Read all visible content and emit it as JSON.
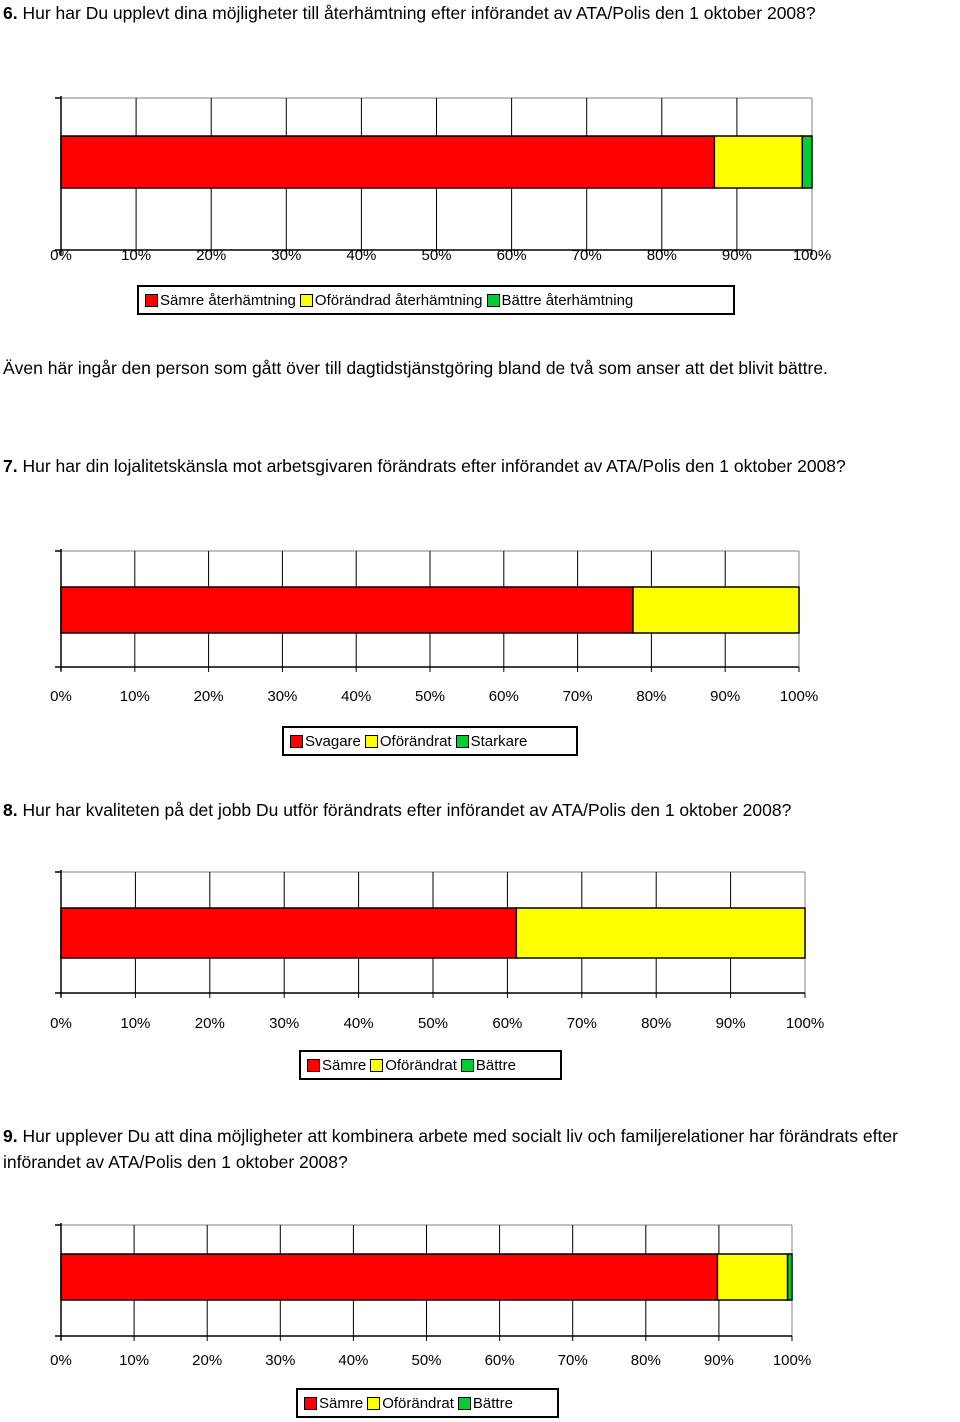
{
  "colors": {
    "red": "#ff0000",
    "yellow": "#ffff00",
    "green": "#00cc33"
  },
  "questions": [
    {
      "number": "6.",
      "text": "Hur har Du upplevt dina möjligheter till återhämtning efter införandet av ATA/Polis den 1 oktober 2008?"
    },
    {
      "number": "7.",
      "text": "Hur har din lojalitetskänsla mot arbetsgivaren förändrats efter införandet av ATA/Polis den 1 oktober 2008?"
    },
    {
      "number": "8.",
      "text": "Hur har kvaliteten på det jobb Du utför förändrats efter införandet av ATA/Polis den 1 oktober 2008?"
    },
    {
      "number": "9.",
      "text": "Hur upplever Du att dina möjligheter att kombinera arbete med socialt liv och familjerelationer har förändrats efter införandet av ATA/Polis den 1 oktober 2008?"
    }
  ],
  "note": "Även här ingår den person som gått över till dagtidstjänstgöring bland de två som anser att det blivit bättre.",
  "chart_data": [
    {
      "type": "bar",
      "orientation": "horizontal-stacked-100",
      "xlim": [
        0,
        100
      ],
      "ticks": [
        "0%",
        "10%",
        "20%",
        "30%",
        "40%",
        "50%",
        "60%",
        "70%",
        "80%",
        "90%",
        "100%"
      ],
      "grid": true,
      "legend_position": "bottom",
      "series": [
        {
          "name": "Sämre återhämtning",
          "values": [
            87
          ],
          "color": "#ff0000"
        },
        {
          "name": "Oförändrad återhämtning",
          "values": [
            11.7
          ],
          "color": "#ffff00"
        },
        {
          "name": "Bättre återhämtning",
          "values": [
            1.3
          ],
          "color": "#00cc33"
        }
      ]
    },
    {
      "type": "bar",
      "orientation": "horizontal-stacked-100",
      "xlim": [
        0,
        100
      ],
      "ticks": [
        "0%",
        "10%",
        "20%",
        "30%",
        "40%",
        "50%",
        "60%",
        "70%",
        "80%",
        "90%",
        "100%"
      ],
      "grid": true,
      "legend_position": "bottom",
      "series": [
        {
          "name": "Svagare",
          "values": [
            77.5
          ],
          "color": "#ff0000"
        },
        {
          "name": "Oförändrat",
          "values": [
            22.5
          ],
          "color": "#ffff00"
        },
        {
          "name": "Starkare",
          "values": [
            0
          ],
          "color": "#00cc33"
        }
      ]
    },
    {
      "type": "bar",
      "orientation": "horizontal-stacked-100",
      "xlim": [
        0,
        100
      ],
      "ticks": [
        "0%",
        "10%",
        "20%",
        "30%",
        "40%",
        "50%",
        "60%",
        "70%",
        "80%",
        "90%",
        "100%"
      ],
      "grid": true,
      "legend_position": "bottom",
      "series": [
        {
          "name": "Sämre",
          "values": [
            61.2
          ],
          "color": "#ff0000"
        },
        {
          "name": "Oförändrat",
          "values": [
            38.8
          ],
          "color": "#ffff00"
        },
        {
          "name": "Bättre",
          "values": [
            0
          ],
          "color": "#00cc33"
        }
      ]
    },
    {
      "type": "bar",
      "orientation": "horizontal-stacked-100",
      "xlim": [
        0,
        100
      ],
      "ticks": [
        "0%",
        "10%",
        "20%",
        "30%",
        "40%",
        "50%",
        "60%",
        "70%",
        "80%",
        "90%",
        "100%"
      ],
      "grid": true,
      "legend_position": "bottom",
      "series": [
        {
          "name": "Sämre",
          "values": [
            89.8
          ],
          "color": "#ff0000"
        },
        {
          "name": "Oförändrat",
          "values": [
            9.6
          ],
          "color": "#ffff00"
        },
        {
          "name": "Bättre",
          "values": [
            0.6
          ],
          "color": "#00cc33"
        }
      ]
    }
  ]
}
